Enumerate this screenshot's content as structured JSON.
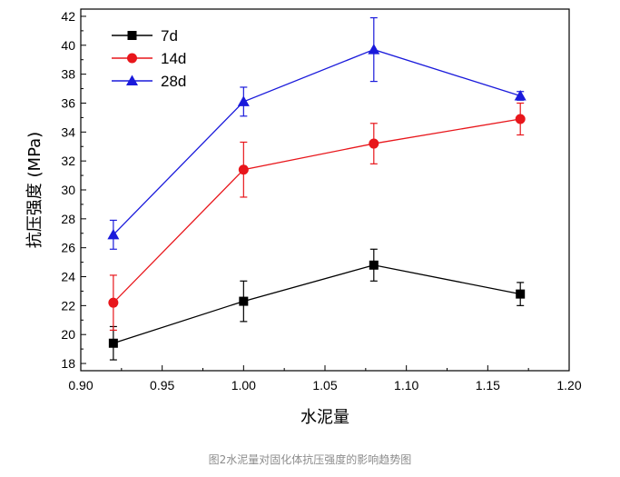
{
  "chart_data": {
    "type": "line",
    "xlabel": "水泥量",
    "ylabel": "抗压强度 (MPa)",
    "xlim": [
      0.9,
      1.2
    ],
    "ylim": [
      17.5,
      42.5
    ],
    "xticks": [
      "0.90",
      "0.95",
      "1.00",
      "1.05",
      "1.10",
      "1.15",
      "1.20"
    ],
    "yticks": [
      "18",
      "20",
      "22",
      "24",
      "26",
      "28",
      "30",
      "32",
      "34",
      "36",
      "38",
      "40",
      "42"
    ],
    "x": [
      0.92,
      1.0,
      1.08,
      1.17
    ],
    "legend_position": "top-left",
    "series": [
      {
        "name": "7d",
        "color": "#000000",
        "marker": "square",
        "values": [
          19.4,
          22.3,
          24.8,
          22.8
        ],
        "errors": [
          1.15,
          1.4,
          1.1,
          0.8
        ]
      },
      {
        "name": "14d",
        "color": "#e8161b",
        "marker": "circle",
        "values": [
          22.2,
          31.4,
          33.2,
          34.9
        ],
        "errors": [
          1.9,
          1.9,
          1.4,
          1.1
        ]
      },
      {
        "name": "28d",
        "color": "#1a1adb",
        "marker": "triangle",
        "values": [
          26.9,
          36.1,
          39.7,
          36.5
        ],
        "errors": [
          1.0,
          1.0,
          2.2,
          0.3
        ]
      }
    ]
  },
  "caption": "图2水泥量对固化体抗压强度的影响趋势图"
}
